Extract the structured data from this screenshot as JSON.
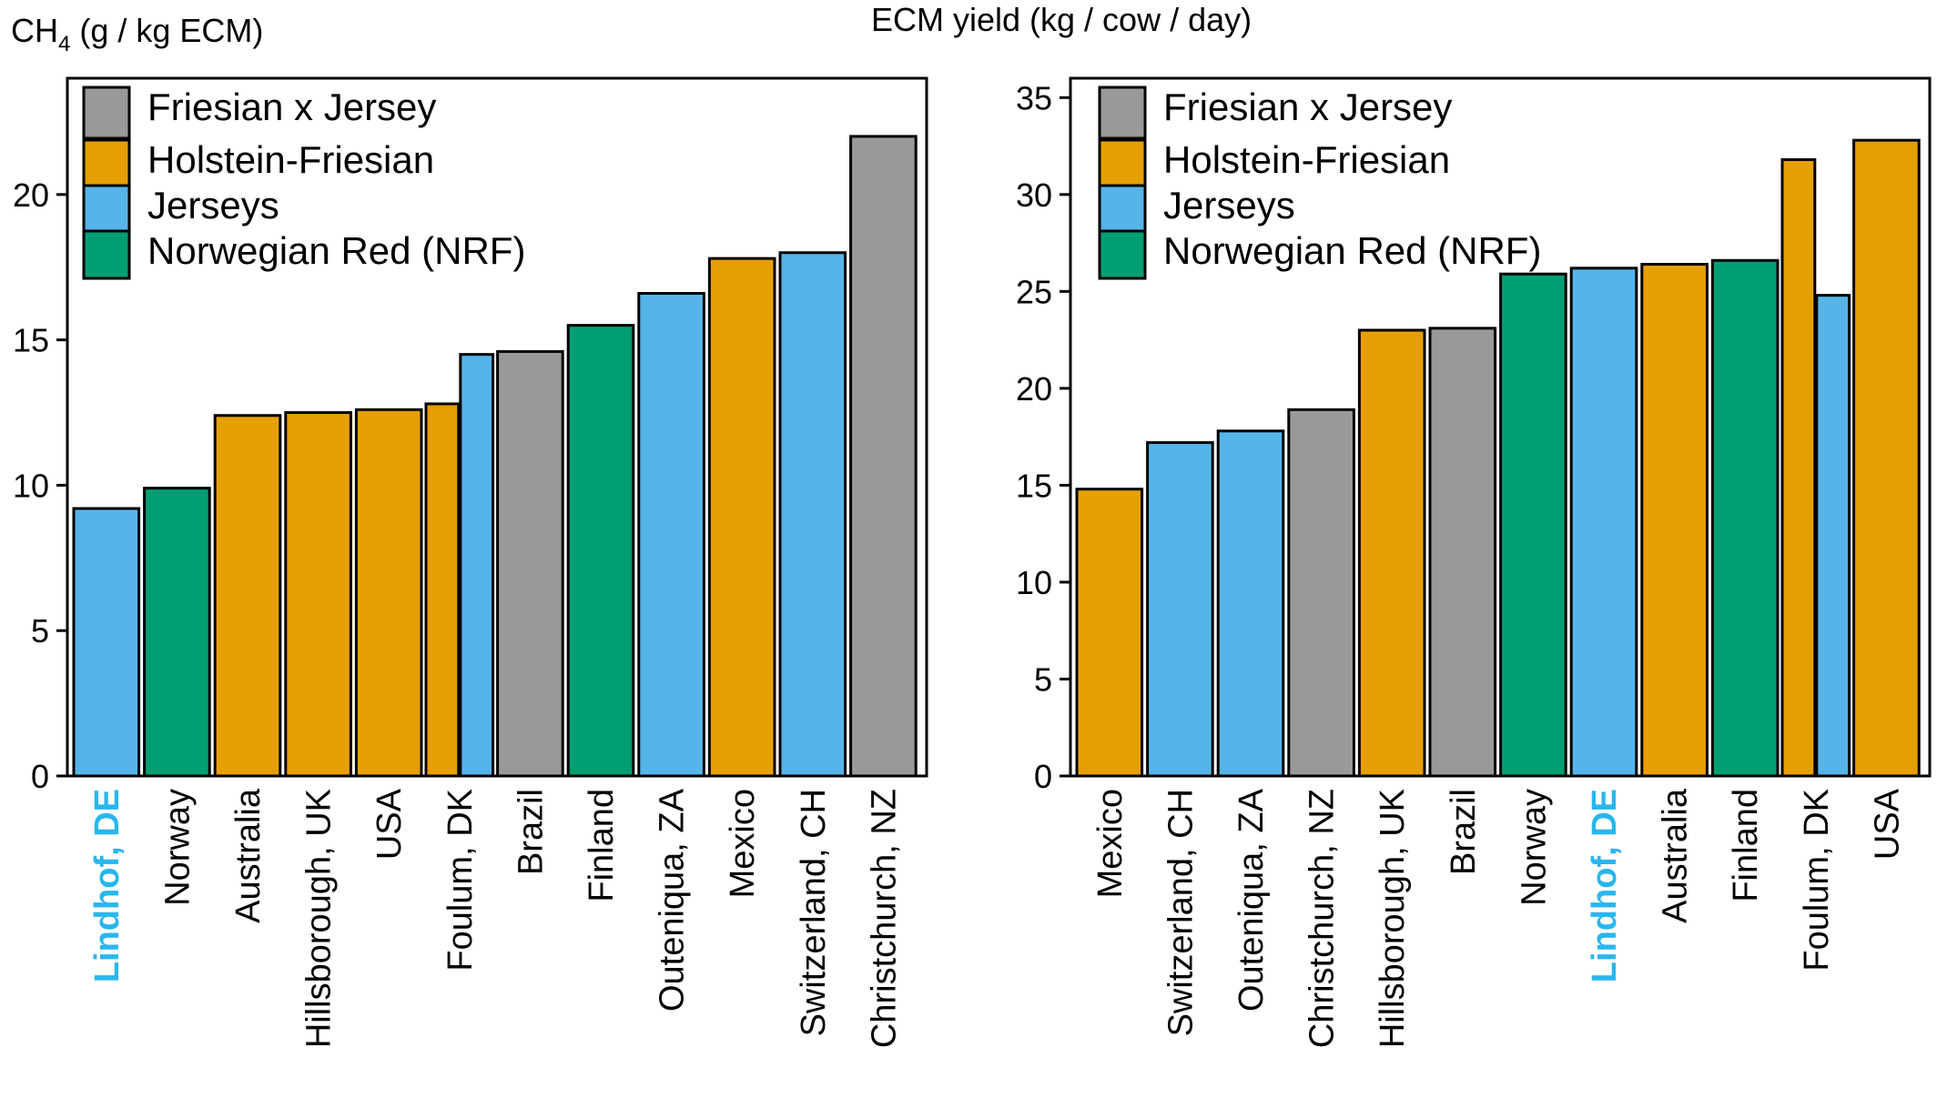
{
  "colors": {
    "Friesian x Jersey": "#999999",
    "Holstein-Friesian": "#E69F00",
    "Jerseys": "#56B4E9",
    "Norwegian Red (NRF)": "#009E73",
    "highlight_label": "#29B6EE"
  },
  "legend": [
    "Friesian x Jersey",
    "Holstein-Friesian",
    "Jerseys",
    "Norwegian Red (NRF)"
  ],
  "chart_data": [
    {
      "type": "bar",
      "ylabel_main": "CH",
      "ylabel_sub": "4",
      "ylabel_rest": " (g / kg ECM)",
      "ylim": [
        0,
        24
      ],
      "yticks": [
        0,
        5,
        10,
        15,
        20
      ],
      "legend_position": "top-left",
      "grid": false,
      "bars": [
        {
          "name": "Lindhof",
          "suffix": "DE",
          "group": "Jerseys",
          "value": 9.2,
          "highlight": true
        },
        {
          "name": "Norway",
          "suffix": "",
          "group": "Norwegian Red (NRF)",
          "value": 9.9
        },
        {
          "name": "Australia",
          "suffix": "",
          "group": "Holstein-Friesian",
          "value": 12.4
        },
        {
          "name": "Hillsborough",
          "suffix": "UK",
          "group": "Holstein-Friesian",
          "value": 12.5
        },
        {
          "name": "USA",
          "suffix": "",
          "group": "Holstein-Friesian",
          "value": 12.6
        },
        {
          "name": "Foulum",
          "suffix": "DK",
          "group": "Holstein-Friesian",
          "value": 12.8,
          "pair": "left"
        },
        {
          "name": "",
          "suffix": "",
          "group": "Jerseys",
          "value": 14.5,
          "pair": "right"
        },
        {
          "name": "Brazil",
          "suffix": "",
          "group": "Friesian x Jersey",
          "value": 14.6
        },
        {
          "name": "Finland",
          "suffix": "",
          "group": "Norwegian Red (NRF)",
          "value": 15.5
        },
        {
          "name": "Outeniqua",
          "suffix": "ZA",
          "group": "Jerseys",
          "value": 16.6
        },
        {
          "name": "Mexico",
          "suffix": "",
          "group": "Holstein-Friesian",
          "value": 17.8
        },
        {
          "name": "Switzerland",
          "suffix": "CH",
          "group": "Jerseys",
          "value": 18.0
        },
        {
          "name": "Christchurch",
          "suffix": "NZ",
          "group": "Friesian x Jersey",
          "value": 22.0
        }
      ]
    },
    {
      "type": "bar",
      "ylabel_main": "ECM yield (kg / cow / day)",
      "ylabel_sub": "",
      "ylabel_rest": "",
      "ylim": [
        0,
        36
      ],
      "yticks": [
        0,
        5,
        10,
        15,
        20,
        25,
        30,
        35
      ],
      "legend_position": "top-left",
      "grid": false,
      "bars": [
        {
          "name": "Mexico",
          "suffix": "",
          "group": "Holstein-Friesian",
          "value": 14.8
        },
        {
          "name": "Switzerland",
          "suffix": "CH",
          "group": "Jerseys",
          "value": 17.2
        },
        {
          "name": "Outeniqua",
          "suffix": "ZA",
          "group": "Jerseys",
          "value": 17.8
        },
        {
          "name": "Christchurch",
          "suffix": "NZ",
          "group": "Friesian x Jersey",
          "value": 18.9
        },
        {
          "name": "Hillsborough",
          "suffix": "UK",
          "group": "Holstein-Friesian",
          "value": 23.0
        },
        {
          "name": "Brazil",
          "suffix": "",
          "group": "Friesian x Jersey",
          "value": 23.1
        },
        {
          "name": "Norway",
          "suffix": "",
          "group": "Norwegian Red (NRF)",
          "value": 25.9
        },
        {
          "name": "Lindhof",
          "suffix": "DE",
          "group": "Jerseys",
          "value": 26.2,
          "highlight": true
        },
        {
          "name": "Australia",
          "suffix": "",
          "group": "Holstein-Friesian",
          "value": 26.4
        },
        {
          "name": "Finland",
          "suffix": "",
          "group": "Norwegian Red (NRF)",
          "value": 26.6
        },
        {
          "name": "Foulum",
          "suffix": "DK",
          "group": "Holstein-Friesian",
          "value": 31.8,
          "pair": "left"
        },
        {
          "name": "",
          "suffix": "",
          "group": "Jerseys",
          "value": 24.8,
          "pair": "right"
        },
        {
          "name": "USA",
          "suffix": "",
          "group": "Holstein-Friesian",
          "value": 32.8
        }
      ]
    }
  ]
}
